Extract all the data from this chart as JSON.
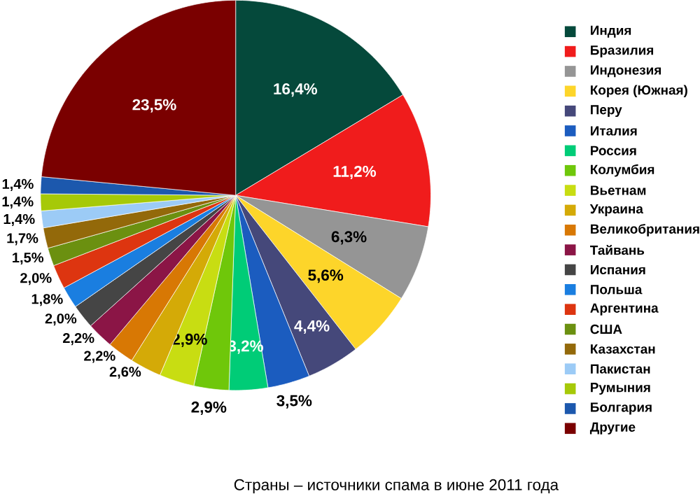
{
  "chart_data": {
    "type": "pie",
    "title": "Страны – источники спама в июне 2011 года",
    "categories": [
      "Индия",
      "Бразилия",
      "Индонезия",
      "Корея (Южная)",
      "Перу",
      "Италия",
      "Россия",
      "Колумбия",
      "Вьетнам",
      "Украина",
      "Великобритания",
      "Тайвань",
      "Испания",
      "Польша",
      "Аргентина",
      "США",
      "Казахстан",
      "Пакистан",
      "Румыния",
      "Болгария",
      "Другие"
    ],
    "values": [
      16.4,
      11.2,
      6.3,
      5.6,
      4.4,
      3.5,
      3.2,
      2.9,
      2.9,
      2.6,
      2.2,
      2.2,
      2.0,
      1.8,
      2.0,
      1.5,
      1.7,
      1.4,
      1.4,
      1.4,
      23.5
    ],
    "value_labels": [
      "16,4%",
      "11,2%",
      "6,3%",
      "5,6%",
      "4,4%",
      "3,5%",
      "3,2%",
      "2,9%",
      "2,9%",
      "2,6%",
      "2,2%",
      "2,2%",
      "2,0%",
      "1,8%",
      "2,0%",
      "1,5%",
      "1,7%",
      "1,4%",
      "1,4%",
      "1,4%",
      "23,5%"
    ],
    "colors": [
      "#05493b",
      "#f01c1c",
      "#959595",
      "#fdd52a",
      "#45487a",
      "#1b5cbf",
      "#00cc77",
      "#6fc70a",
      "#c8dd12",
      "#d4aa07",
      "#d87804",
      "#8b1546",
      "#454545",
      "#1a7ee0",
      "#dd3510",
      "#6b9010",
      "#93690a",
      "#9ccbf6",
      "#a6c908",
      "#1c58ad",
      "#7a0000"
    ],
    "legend": "right"
  }
}
